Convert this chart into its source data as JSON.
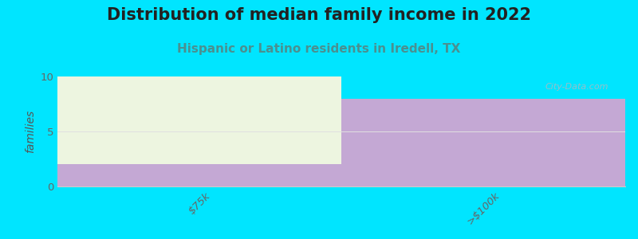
{
  "title": "Distribution of median family income in 2022",
  "subtitle": "Hispanic or Latino residents in Iredell, TX",
  "categories": [
    "$75k",
    ">$100k"
  ],
  "values": [
    2,
    8
  ],
  "ylabel": "families",
  "ylim": [
    0,
    10
  ],
  "yticks": [
    0,
    5,
    10
  ],
  "background_color": "#00e5ff",
  "plot_bg_color": "#00e5ff",
  "title_fontsize": 15,
  "subtitle_fontsize": 11,
  "title_color": "#222222",
  "subtitle_color": "#4a9090",
  "watermark": "City-Data.com",
  "green_bar_color_top": "#edf5e0",
  "green_bar_color_bottom": "#deecd0",
  "purple_color": "#c4a8d4",
  "grid_line_color": "#e0e0e0"
}
